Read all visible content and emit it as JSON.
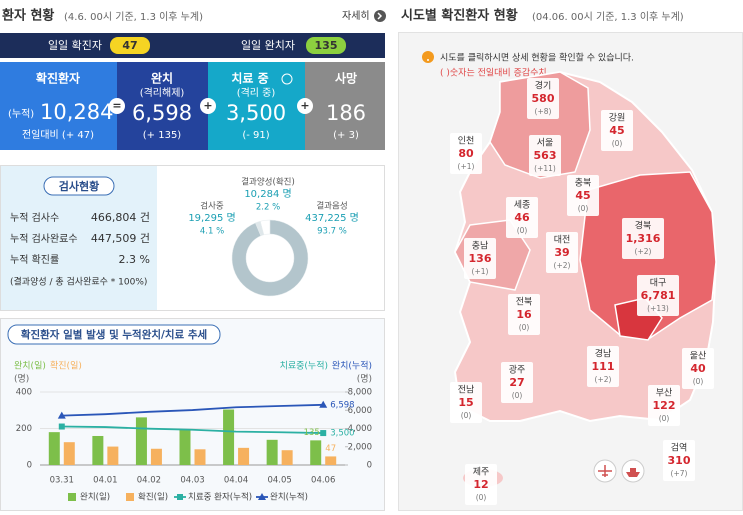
{
  "left_header": {
    "title": "환자 현황",
    "subtitle": "(4.6. 00시 기준, 1.3 이후 누계)",
    "more": "자세히"
  },
  "daily": [
    {
      "label": "일일 확진자",
      "value": "47"
    },
    {
      "label": "일일 완치자",
      "value": "135"
    }
  ],
  "summary": [
    {
      "title": "확진환자",
      "prefix": "(누적)",
      "value": "10,284",
      "change": "전일대비 (+ 47)"
    },
    {
      "title": "완치",
      "subtitle": "(격리해제)",
      "value": "6,598",
      "change": "(+ 135)"
    },
    {
      "title": "치료 중",
      "subtitle": "(격리 중)",
      "value": "3,500",
      "change": "(- 91)"
    },
    {
      "title": "사망",
      "value": "186",
      "change": "(+ 3)"
    }
  ],
  "operators": [
    "=",
    "+",
    "+"
  ],
  "tests": {
    "title": "검사현황",
    "rows": [
      [
        "누적 검사수",
        "466,804 건"
      ],
      [
        "누적 검사완료수",
        "447,509 건"
      ],
      [
        "누적 확진률",
        "2.3 %"
      ]
    ],
    "note": "(결과양성 / 총 검사완료수 * 100%)",
    "donut": {
      "type": "pie",
      "segments": [
        {
          "name": "결과양성(확진)",
          "count": "10,284 명",
          "value": 2.2,
          "value_label": "2.2 %",
          "color": "#dfe7ea"
        },
        {
          "name": "검사중",
          "count": "19,295 명",
          "value": 4.1,
          "value_label": "4.1 %",
          "color": "#ffffff"
        },
        {
          "name": "결과음성",
          "count": "437,225 명",
          "value": 93.7,
          "value_label": "93.7 %",
          "color": "#b3c5cc"
        }
      ]
    }
  },
  "chart_data": {
    "type": "bar",
    "title": "확진환자 일별 발생 및 누적완치/치료 추세",
    "y_unit": "(명)",
    "y2_labels": [
      "치료중(누적)",
      "완치(누적)"
    ],
    "y2_unit": "(명)",
    "categories": [
      "03.31",
      "04.01",
      "04.02",
      "04.03",
      "04.04",
      "04.05",
      "04.06"
    ],
    "ylim": [
      0,
      400
    ],
    "yticks": [
      0,
      200,
      400
    ],
    "y2lim": [
      0,
      8000
    ],
    "y2ticks": [
      0,
      {
        "value": 2000,
        "label": "2,000"
      },
      {
        "value": 4000,
        "label": "4,000"
      },
      {
        "value": 6000,
        "label": "6,000"
      },
      {
        "value": 8000,
        "label": "8,000"
      }
    ],
    "grid": true,
    "series": [
      {
        "name": "완치(일)",
        "type": "bar",
        "color": "#7dbf4a",
        "values": [
          180,
          159,
          261,
          193,
          304,
          138,
          135
        ],
        "value_labels": [
          null,
          null,
          null,
          null,
          null,
          null,
          "135"
        ]
      },
      {
        "name": "확진(일)",
        "type": "bar",
        "color": "#f6b15e",
        "values": [
          125,
          101,
          89,
          86,
          94,
          81,
          47
        ],
        "value_labels": [
          null,
          null,
          null,
          null,
          null,
          null,
          "47"
        ]
      },
      {
        "name": "치료중 환자(누적)",
        "type": "line",
        "axis": "y2",
        "marker": "square",
        "color": "#2bb0a3",
        "values": [
          4216,
          4155,
          3979,
          3867,
          3654,
          3591,
          3500
        ],
        "value_labels": [
          null,
          null,
          null,
          null,
          null,
          null,
          "3,500"
        ]
      },
      {
        "name": "완치(누적)",
        "type": "line",
        "axis": "y2",
        "marker": "triangle",
        "color": "#2a56b8",
        "values": [
          5408,
          5567,
          5828,
          6021,
          6325,
          6463,
          6598
        ],
        "value_labels": [
          null,
          null,
          null,
          null,
          null,
          null,
          "6,598"
        ]
      }
    ]
  },
  "map": {
    "title": "시도별 확진환자 현황",
    "subtitle": "(04.06. 00시 기준, 1.3 이후 누계)",
    "notes": [
      "시도를 클릭하시면 상세 현황을 확인할 수 있습니다.",
      "( )숫자는 전일대비 증감수치"
    ],
    "regions": [
      {
        "name": "경기",
        "count": "580",
        "change": "(+8)"
      },
      {
        "name": "강원",
        "count": "45",
        "change": "(0)"
      },
      {
        "name": "인천",
        "count": "80",
        "change": "(+1)"
      },
      {
        "name": "서울",
        "count": "563",
        "change": "(+11)"
      },
      {
        "name": "충북",
        "count": "45",
        "change": "(0)"
      },
      {
        "name": "세종",
        "count": "46",
        "change": "(0)"
      },
      {
        "name": "대전",
        "count": "39",
        "change": "(+2)"
      },
      {
        "name": "경북",
        "count": "1,316",
        "change": "(+2)"
      },
      {
        "name": "충남",
        "count": "136",
        "change": "(+1)"
      },
      {
        "name": "대구",
        "count": "6,781",
        "change": "(+13)"
      },
      {
        "name": "전북",
        "count": "16",
        "change": "(0)"
      },
      {
        "name": "경남",
        "count": "111",
        "change": "(+2)"
      },
      {
        "name": "울산",
        "count": "40",
        "change": "(0)"
      },
      {
        "name": "광주",
        "count": "27",
        "change": "(0)"
      },
      {
        "name": "전남",
        "count": "15",
        "change": "(0)"
      },
      {
        "name": "부산",
        "count": "122",
        "change": "(0)"
      },
      {
        "name": "검역",
        "count": "310",
        "change": "(+7)"
      },
      {
        "name": "제주",
        "count": "12",
        "change": "(0)"
      }
    ]
  }
}
